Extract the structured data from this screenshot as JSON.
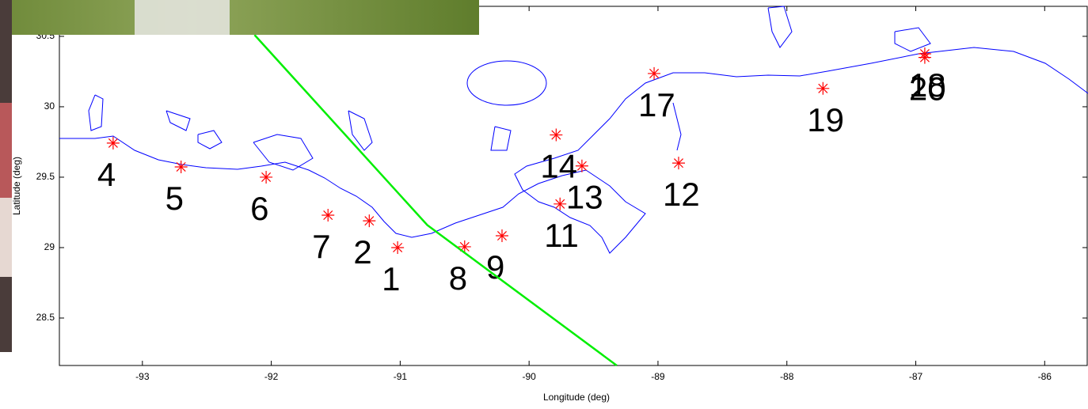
{
  "chart_data": {
    "type": "scatter",
    "x_label": "Longitude (deg)",
    "y_label": "Latitude (deg)",
    "xlim": [
      -93.644,
      -85.67
    ],
    "ylim": [
      28.163,
      30.713
    ],
    "xticks": [
      -93,
      -92,
      -91,
      -90,
      -89,
      -88,
      -87,
      -86
    ],
    "yticks": [
      28.5,
      29,
      29.5,
      30,
      30.5
    ],
    "series": [
      {
        "color": "#ff0000",
        "labels": [
          "4",
          "5",
          "6",
          "7",
          "2",
          "1",
          "8",
          "9",
          "11",
          "13",
          "14",
          "12",
          "17",
          "19",
          "18",
          "20"
        ],
        "x": [
          -93.227,
          -92.7,
          -92.04,
          -91.56,
          -91.24,
          -91.02,
          -90.5,
          -90.21,
          -89.76,
          -89.59,
          -89.79,
          -88.84,
          -89.03,
          -87.72,
          -86.93,
          -86.93
        ],
        "y": [
          29.742,
          29.573,
          29.5,
          29.23,
          29.19,
          29.0,
          29.006,
          29.084,
          29.31,
          29.58,
          29.8,
          29.6,
          30.236,
          30.13,
          30.376,
          30.35
        ]
      },
      {
        "color": "#00ee00",
        "x": [
          -92.13,
          -90.79,
          -89.32
        ],
        "y": [
          30.51,
          29.16,
          28.163
        ]
      }
    ]
  }
}
